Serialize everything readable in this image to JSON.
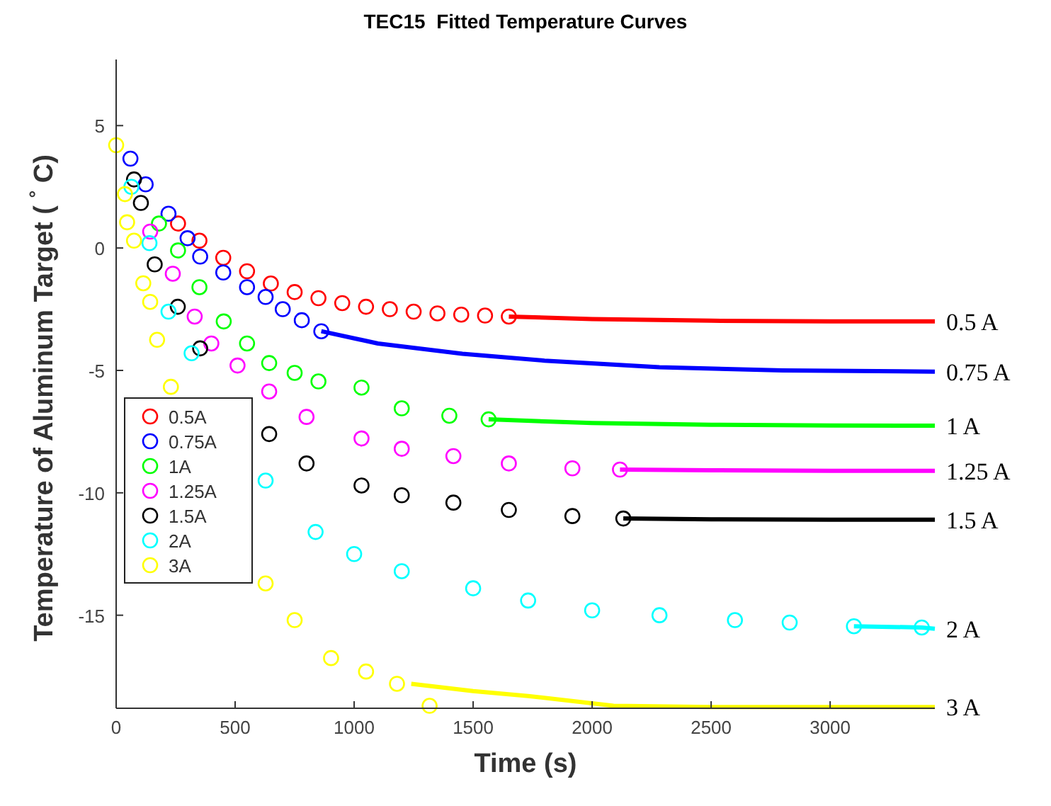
{
  "chart_data": {
    "type": "scatter",
    "title": "TEC15  Fitted Temperature Curves",
    "xlabel": "Time (s)",
    "ylabel": "Temperature of Aluminum Target ( $^{°}$ C)",
    "xlim": [
      0,
      3440
    ],
    "ylim": [
      -18.8,
      7.7
    ],
    "xticks": [
      0,
      500,
      1000,
      1500,
      2000,
      2500,
      3000
    ],
    "yticks": [
      -15,
      -10,
      -5,
      0,
      5
    ],
    "grid": false,
    "legend": "left",
    "marker": "circle",
    "series": [
      {
        "name": "0.5A",
        "color": "#ff0000",
        "x": [
          260,
          350,
          450,
          550,
          650,
          750,
          850,
          950,
          1050,
          1150,
          1250,
          1350,
          1450,
          1550,
          1650
        ],
        "values": [
          1.0,
          0.3,
          -0.4,
          -0.95,
          -1.45,
          -1.8,
          -2.05,
          -2.25,
          -2.4,
          -2.5,
          -2.6,
          -2.67,
          -2.72,
          -2.76,
          -2.8
        ]
      },
      {
        "name": "0.75A",
        "color": "#0000ff",
        "x": [
          60,
          124,
          220,
          300,
          353,
          450,
          550,
          628,
          700,
          780,
          862
        ],
        "values": [
          3.65,
          2.6,
          1.4,
          0.4,
          -0.35,
          -1.0,
          -1.6,
          -2.0,
          -2.5,
          -2.95,
          -3.4
        ]
      },
      {
        "name": "1A",
        "color": "#00ff00",
        "x": [
          180,
          260,
          350,
          452,
          550,
          643,
          750,
          850,
          1031,
          1200,
          1400,
          1565
        ],
        "values": [
          1.0,
          -0.1,
          -1.6,
          -3.0,
          -3.9,
          -4.7,
          -5.1,
          -5.45,
          -5.7,
          -6.55,
          -6.85,
          -7.0
        ]
      },
      {
        "name": "1.25A",
        "color": "#ff00ff",
        "x": [
          143,
          238,
          330,
          400,
          510,
          643,
          800,
          1031,
          1200,
          1417,
          1650,
          1917,
          2117
        ],
        "values": [
          0.67,
          -1.05,
          -2.8,
          -3.9,
          -4.8,
          -5.86,
          -6.9,
          -7.78,
          -8.2,
          -8.5,
          -8.8,
          -9.0,
          -9.05
        ]
      },
      {
        "name": "1.5A",
        "color": "#000000",
        "x": [
          75,
          104,
          162,
          259,
          353,
          643,
          800,
          1031,
          1200,
          1417,
          1650,
          1917,
          2131
        ],
        "values": [
          2.8,
          1.84,
          -0.67,
          -2.4,
          -4.1,
          -7.6,
          -8.8,
          -9.7,
          -10.1,
          -10.4,
          -10.7,
          -10.95,
          -11.05
        ]
      },
      {
        "name": "2A",
        "color": "#00ffff",
        "x": [
          64,
          140,
          220,
          317,
          628,
          838,
          1000,
          1200,
          1500,
          1731,
          2000,
          2283,
          2600,
          2830,
          3100,
          3385
        ],
        "values": [
          2.5,
          0.2,
          -2.6,
          -4.3,
          -9.5,
          -11.6,
          -12.5,
          -13.2,
          -13.9,
          -14.4,
          -14.8,
          -15.0,
          -15.2,
          -15.3,
          -15.45,
          -15.5
        ]
      },
      {
        "name": "3A",
        "color": "#ffff00",
        "x": [
          0,
          37,
          46,
          75,
          114,
          143,
          172,
          230,
          628,
          750,
          903,
          1050,
          1180,
          1317
        ],
        "values": [
          4.2,
          2.2,
          1.05,
          0.3,
          -1.44,
          -2.2,
          -3.75,
          -5.67,
          -13.7,
          -15.2,
          -16.75,
          -17.3,
          -17.8,
          -18.7
        ]
      },
      {
        "name": "0.5 A",
        "type": "line",
        "marker": "none",
        "color": "#ff0000",
        "x": [
          1650,
          2000,
          2500,
          3000,
          3440
        ],
        "values": [
          -2.8,
          -2.9,
          -2.97,
          -3.0,
          -3.0
        ]
      },
      {
        "name": "0.75 A",
        "type": "line",
        "marker": "none",
        "color": "#0000ff",
        "x": [
          862,
          1100,
          1455,
          1800,
          2283,
          2800,
          3440
        ],
        "values": [
          -3.4,
          -3.9,
          -4.32,
          -4.6,
          -4.87,
          -5.0,
          -5.05
        ]
      },
      {
        "name": "1 A",
        "type": "line",
        "marker": "none",
        "color": "#00ff00",
        "x": [
          1565,
          2000,
          2500,
          3000,
          3440
        ],
        "values": [
          -7.0,
          -7.15,
          -7.22,
          -7.25,
          -7.26
        ]
      },
      {
        "name": "1.25 A",
        "type": "line",
        "marker": "none",
        "color": "#ff00ff",
        "x": [
          2117,
          2500,
          3000,
          3440
        ],
        "values": [
          -9.05,
          -9.08,
          -9.1,
          -9.1
        ]
      },
      {
        "name": "1.5 A",
        "type": "line",
        "marker": "none",
        "color": "#000000",
        "x": [
          2131,
          2500,
          3000,
          3440
        ],
        "values": [
          -11.05,
          -11.08,
          -11.1,
          -11.1
        ]
      },
      {
        "name": "2 A",
        "type": "line",
        "marker": "none",
        "color": "#00ffff",
        "x": [
          3100,
          3385,
          3440
        ],
        "values": [
          -15.45,
          -15.5,
          -15.55
        ]
      },
      {
        "name": "3 A",
        "type": "line",
        "marker": "none",
        "color": "#ffff00",
        "x": [
          1240,
          1500,
          1731,
          2090,
          2500,
          3440
        ],
        "values": [
          -17.8,
          -18.1,
          -18.3,
          -18.7,
          -18.75,
          -18.75
        ]
      }
    ]
  }
}
